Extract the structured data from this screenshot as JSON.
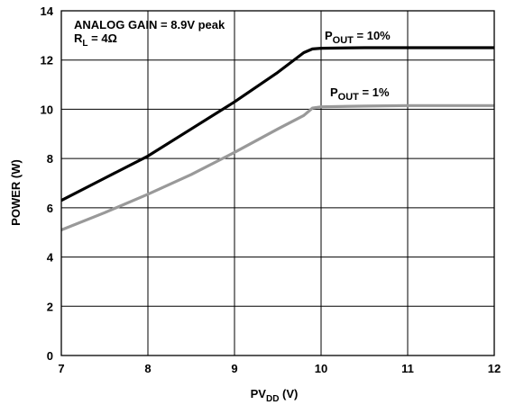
{
  "chart_data": {
    "type": "line",
    "xlabel": {
      "main": "PV",
      "sub": "DD",
      "suffix": " (V)"
    },
    "ylabel": "POWER (W)",
    "xlim": [
      7,
      12
    ],
    "ylim": [
      0,
      14
    ],
    "x_ticks": [
      "7",
      "8",
      "9",
      "10",
      "11",
      "12"
    ],
    "y_ticks": [
      "0",
      "2",
      "4",
      "6",
      "8",
      "10",
      "12",
      "14"
    ],
    "grid": true,
    "annotations": {
      "gain": "ANALOG GAIN = 8.9V peak",
      "load_main": "R",
      "load_sub": "L",
      "load_suffix": " = 4Ω"
    },
    "series": [
      {
        "label_main": "P",
        "label_sub": "OUT",
        "label_suffix": " = 10%",
        "color": "#000000",
        "x": [
          7.0,
          7.5,
          8.0,
          8.5,
          9.0,
          9.5,
          9.8,
          9.9,
          10.0,
          10.5,
          11.0,
          11.5,
          12.0
        ],
        "y": [
          6.3,
          7.2,
          8.1,
          9.2,
          10.3,
          11.5,
          12.3,
          12.45,
          12.48,
          12.5,
          12.5,
          12.5,
          12.5
        ]
      },
      {
        "label_main": "P",
        "label_sub": "OUT",
        "label_suffix": " = 1%",
        "color": "#999999",
        "x": [
          7.0,
          7.5,
          8.0,
          8.5,
          9.0,
          9.5,
          9.8,
          9.9,
          10.0,
          10.5,
          11.0,
          11.5,
          12.0
        ],
        "y": [
          5.1,
          5.8,
          6.55,
          7.35,
          8.25,
          9.2,
          9.75,
          10.05,
          10.1,
          10.13,
          10.15,
          10.15,
          10.15
        ]
      }
    ]
  }
}
